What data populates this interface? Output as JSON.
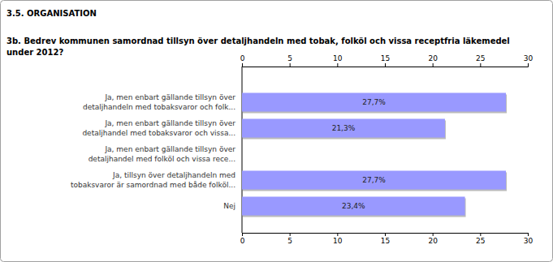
{
  "chart_data": {
    "type": "bar",
    "orientation": "horizontal",
    "subtitle": "3.5. ORGANISATION",
    "title": "3b. Bedrev kommunen samordnad tillsyn över detaljhandeln med tobak, folköl och vissa receptfria läkemedel\nunder 2012?",
    "categories": [
      "Ja, men enbart gällande tillsyn över\ndetaljhandeln med tobaksvaror och folk...",
      "Ja, men enbart gällande tillsyn över\ndetaljhandel med tobaksvaror och vissa...",
      "Ja, men enbart gällande tillsyn över\ndetaljhandel med folköl och vissa rece...",
      "Ja, tillsyn över detaljhandeln med\ntobaksvaror är samordnad med både folköl...",
      "Nej"
    ],
    "values": [
      27.7,
      21.3,
      0,
      27.7,
      23.4
    ],
    "value_labels": [
      "27,7%",
      "21,3%",
      null,
      "27,7%",
      "23,4%"
    ],
    "data_labels": true,
    "color": "#9999ff",
    "xlim": [
      0,
      30
    ],
    "xticks": [
      0,
      5,
      10,
      15,
      20,
      25,
      30
    ]
  }
}
